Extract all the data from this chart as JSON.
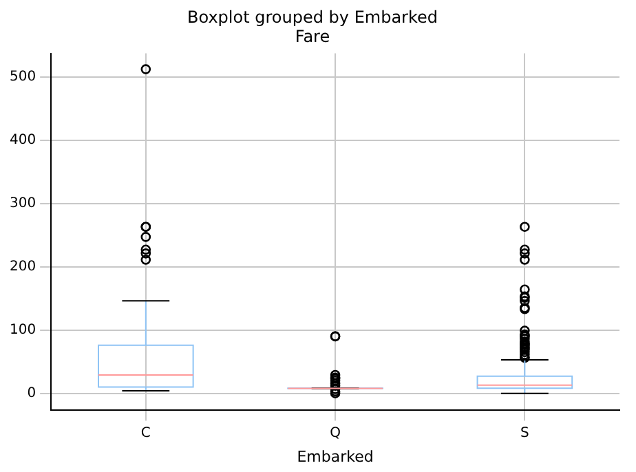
{
  "chart_data": {
    "type": "box",
    "title": "Boxplot grouped by Embarked",
    "subtitle": "Fare",
    "xlabel": "Embarked",
    "categories": [
      "C",
      "Q",
      "S"
    ],
    "color": "#8fc4f5",
    "boxes": [
      {
        "low": 4,
        "q1": 10,
        "median": 29,
        "q3": 76,
        "high": 146,
        "outliers": [
          211,
          221,
          227,
          247,
          263,
          263,
          512
        ]
      },
      {
        "low": 7.5,
        "q1": 7.75,
        "median": 7.75,
        "q3": 8,
        "high": 8,
        "outliers": [
          0,
          3,
          6.75,
          12,
          15.5,
          20,
          23,
          25,
          29,
          90,
          90
        ]
      },
      {
        "low": 0,
        "q1": 8,
        "median": 13,
        "q3": 27,
        "high": 53,
        "outliers": [
          56,
          57,
          61,
          65,
          69,
          71,
          73,
          76,
          78,
          79,
          82,
          86,
          90,
          91,
          93,
          99,
          133,
          135,
          146,
          151,
          153,
          164,
          211,
          221,
          227,
          263
        ]
      }
    ],
    "ylim": [
      -26,
      537
    ],
    "yticks": [
      0,
      100,
      200,
      300,
      400,
      500
    ],
    "grid": true,
    "marker": "circle"
  }
}
